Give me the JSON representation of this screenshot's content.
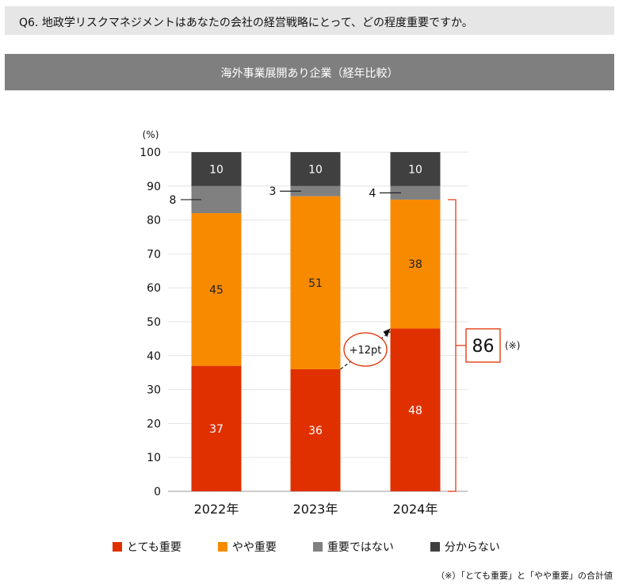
{
  "question": "Q6. 地政学リスクマネジメントはあなたの会社の経営戦略にとって、どの程度重要ですか。",
  "banner_title": "海外事業展開あり企業（経年比較）",
  "chart_data": {
    "type": "bar",
    "stacked": true,
    "title": "海外事業展開あり企業（経年比較）",
    "ylabel": "(%)",
    "xlabel": "",
    "ylim": [
      0,
      100
    ],
    "yticks": [
      0,
      10,
      20,
      30,
      40,
      50,
      60,
      70,
      80,
      90,
      100
    ],
    "categories": [
      "2022年",
      "2023年",
      "2024年"
    ],
    "series": [
      {
        "name": "とても重要",
        "values": [
          37,
          36,
          48
        ],
        "labels": [
          "37",
          "36",
          "48"
        ],
        "color": "#e03000"
      },
      {
        "name": "やや重要",
        "values": [
          45,
          51,
          38
        ],
        "labels": [
          "45",
          "51",
          "38"
        ],
        "color": "#f88a00"
      },
      {
        "name": "重要ではない",
        "values": [
          8,
          3,
          4
        ],
        "labels": [
          "8",
          "3",
          "4"
        ],
        "color": "#808080"
      },
      {
        "name": "分からない",
        "values": [
          10,
          10,
          10
        ],
        "labels": [
          "10",
          "10",
          "10"
        ],
        "color": "#404040"
      }
    ],
    "annotations": {
      "change_label": "+12pt",
      "total_value": "86",
      "total_mark": "(※)"
    },
    "legend_position": "bottom"
  },
  "legend": [
    {
      "label": "とても重要",
      "color": "#e03000"
    },
    {
      "label": "やや重要",
      "color": "#f88a00"
    },
    {
      "label": "重要ではない",
      "color": "#808080"
    },
    {
      "label": "分からない",
      "color": "#404040"
    }
  ],
  "footnote": "（※）「とても重要」と「やや重要」の合計値"
}
